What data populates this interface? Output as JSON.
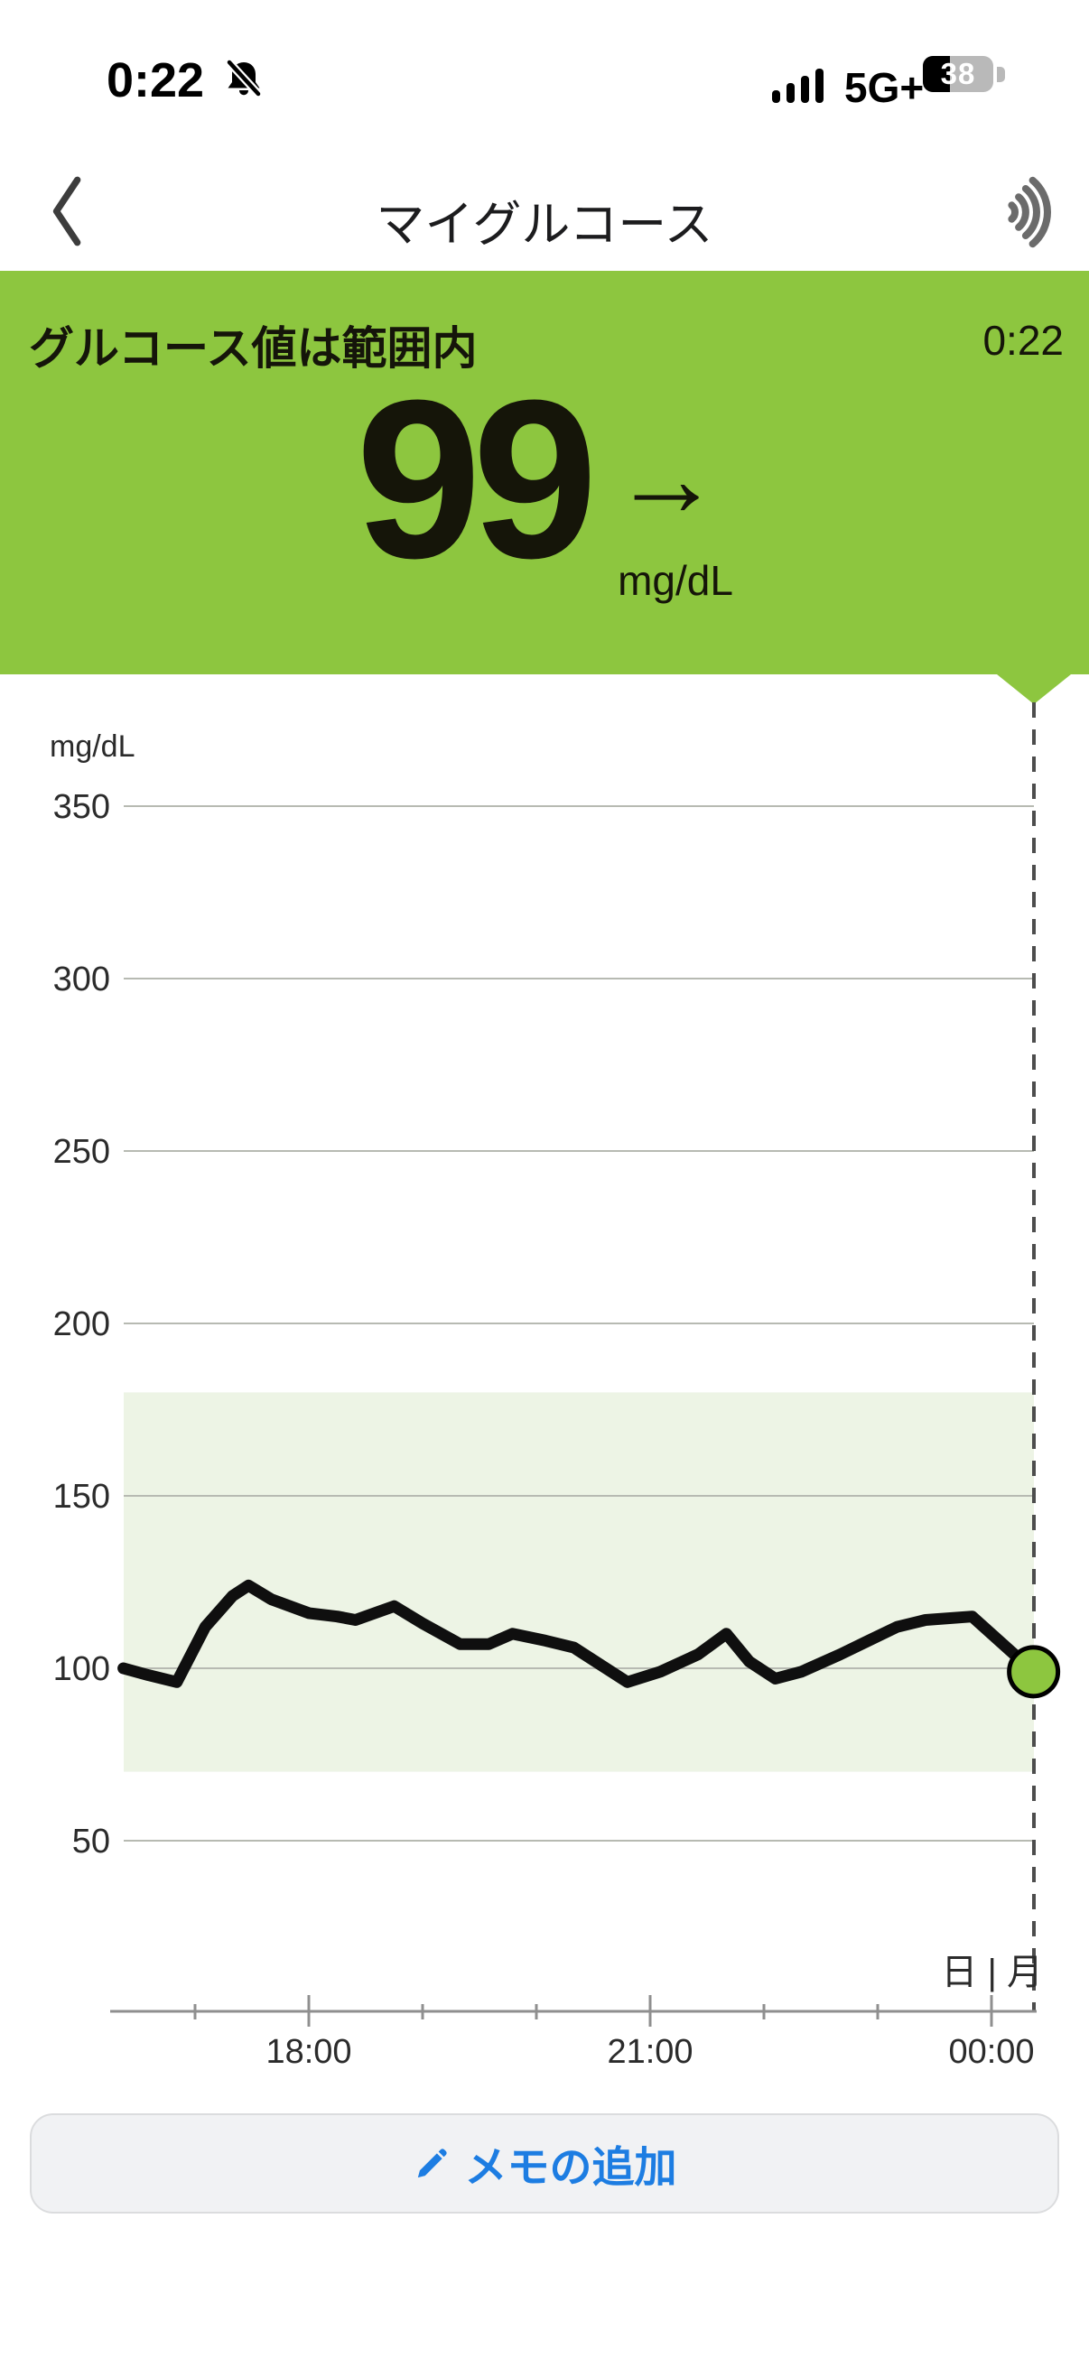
{
  "status_bar": {
    "time": "0:22",
    "network": "5G+",
    "battery_percent": "38",
    "signal_bars": 4,
    "bell_icon": "bell-slash"
  },
  "nav": {
    "title": "マイグルコース",
    "back_icon": "chevron-left",
    "scan_icon": "nfc-scan-waves"
  },
  "banner": {
    "status_text": "グルコース値は範囲内",
    "time": "0:22",
    "value": "99",
    "trend_arrow": "→",
    "unit": "mg/dL",
    "bg_color": "#8DC63F"
  },
  "chart_data": {
    "type": "line",
    "ylabel": "mg/dL",
    "y_ticks": [
      350,
      300,
      250,
      200,
      150,
      100,
      50
    ],
    "ylim": [
      0,
      360
    ],
    "xlim_hours": [
      16.25,
      24.37
    ],
    "x_ticks": [
      {
        "hour": 18,
        "label": "18:00"
      },
      {
        "hour": 21,
        "label": "21:00"
      },
      {
        "hour": 24,
        "label": "00:00"
      }
    ],
    "x_minor_tick_hours": [
      17,
      19,
      20,
      22,
      23
    ],
    "target_range": {
      "low": 70,
      "high": 180,
      "fill": "#EDF4E5"
    },
    "day_boundary_label": "日 | 月",
    "grid": true,
    "legend": "none",
    "line_color": "#0f0f0f",
    "marker_color": "#8DC63F",
    "current_point": {
      "time": "0:22",
      "value": 99,
      "hour": 24.37
    },
    "series": [
      {
        "name": "glucose",
        "points": [
          [
            16.37,
            100
          ],
          [
            16.59,
            98
          ],
          [
            16.84,
            96
          ],
          [
            17.09,
            112
          ],
          [
            17.33,
            121
          ],
          [
            17.47,
            124
          ],
          [
            17.67,
            120
          ],
          [
            18.0,
            116
          ],
          [
            18.25,
            115
          ],
          [
            18.41,
            114
          ],
          [
            18.75,
            118
          ],
          [
            19.0,
            113
          ],
          [
            19.33,
            107
          ],
          [
            19.58,
            107
          ],
          [
            19.79,
            110
          ],
          [
            20.08,
            108
          ],
          [
            20.33,
            106
          ],
          [
            20.8,
            96
          ],
          [
            21.09,
            99
          ],
          [
            21.42,
            104
          ],
          [
            21.67,
            110
          ],
          [
            21.87,
            102
          ],
          [
            22.1,
            97
          ],
          [
            22.33,
            99
          ],
          [
            22.67,
            104
          ],
          [
            22.92,
            108
          ],
          [
            23.17,
            112
          ],
          [
            23.42,
            114
          ],
          [
            23.83,
            115
          ],
          [
            24.37,
            99
          ]
        ]
      }
    ]
  },
  "note_button": {
    "label": "メモの追加",
    "icon": "pencil",
    "color": "#1D7DE2"
  }
}
